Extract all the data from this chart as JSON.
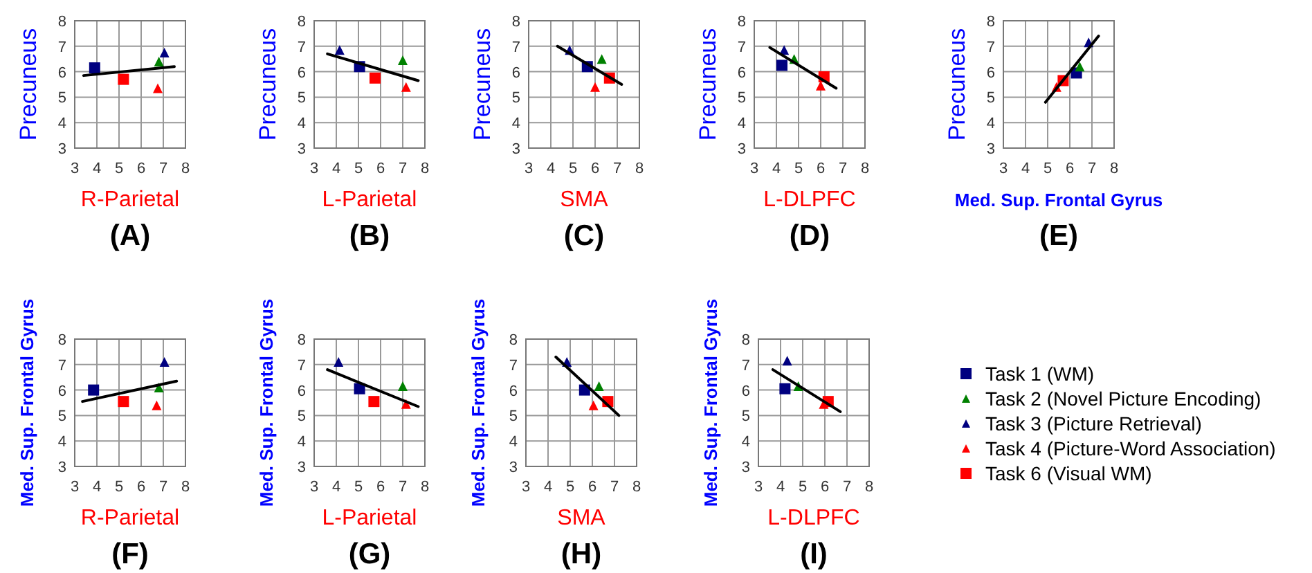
{
  "chart_data": [
    {
      "type": "scatter",
      "title": "(A)",
      "xlabel": "R-Parietal",
      "ylabel": "Precuneus",
      "xlim": [
        3,
        8
      ],
      "ylim": [
        3,
        8
      ],
      "xticks": [
        3,
        4,
        5,
        6,
        7,
        8
      ],
      "yticks": [
        3,
        4,
        5,
        6,
        7,
        8
      ],
      "grid": true,
      "series": [
        {
          "color": "#000080",
          "marker": "square",
          "x": [
            3.9
          ],
          "values": [
            6.15
          ]
        },
        {
          "color": "#008000",
          "marker": "triangle",
          "x": [
            6.8
          ],
          "values": [
            6.4
          ]
        },
        {
          "color": "#000080",
          "marker": "triangle",
          "x": [
            7.05
          ],
          "values": [
            6.75
          ]
        },
        {
          "color": "#ff0000",
          "marker": "triangle",
          "x": [
            6.75
          ],
          "values": [
            5.35
          ]
        },
        {
          "color": "#ff0000",
          "marker": "square",
          "x": [
            5.2
          ],
          "values": [
            5.7
          ]
        },
        {
          "type": "line",
          "color": "#000000",
          "x": [
            3.4,
            7.5
          ],
          "values": [
            5.85,
            6.2
          ]
        }
      ]
    },
    {
      "type": "scatter",
      "title": "(B)",
      "xlabel": "L-Parietal",
      "ylabel": "Precuneus",
      "xlim": [
        3,
        8
      ],
      "ylim": [
        3,
        8
      ],
      "xticks": [
        3,
        4,
        5,
        6,
        7,
        8
      ],
      "yticks": [
        3,
        4,
        5,
        6,
        7,
        8
      ],
      "grid": true,
      "series": [
        {
          "color": "#000080",
          "marker": "square",
          "x": [
            5.05
          ],
          "values": [
            6.2
          ]
        },
        {
          "color": "#008000",
          "marker": "triangle",
          "x": [
            7.0
          ],
          "values": [
            6.45
          ]
        },
        {
          "color": "#000080",
          "marker": "triangle",
          "x": [
            4.15
          ],
          "values": [
            6.85
          ]
        },
        {
          "color": "#ff0000",
          "marker": "triangle",
          "x": [
            7.15
          ],
          "values": [
            5.4
          ]
        },
        {
          "color": "#ff0000",
          "marker": "square",
          "x": [
            5.75
          ],
          "values": [
            5.75
          ]
        },
        {
          "type": "line",
          "color": "#000000",
          "x": [
            3.6,
            7.7
          ],
          "values": [
            6.7,
            5.65
          ]
        }
      ]
    },
    {
      "type": "scatter",
      "title": "(C)",
      "xlabel": "SMA",
      "ylabel": "Precuneus",
      "xlim": [
        3,
        8
      ],
      "ylim": [
        3,
        8
      ],
      "xticks": [
        3,
        4,
        5,
        6,
        7,
        8
      ],
      "yticks": [
        3,
        4,
        5,
        6,
        7,
        8
      ],
      "grid": true,
      "series": [
        {
          "color": "#000080",
          "marker": "square",
          "x": [
            5.65
          ],
          "values": [
            6.2
          ]
        },
        {
          "color": "#008000",
          "marker": "triangle",
          "x": [
            6.3
          ],
          "values": [
            6.5
          ]
        },
        {
          "color": "#000080",
          "marker": "triangle",
          "x": [
            4.85
          ],
          "values": [
            6.85
          ]
        },
        {
          "color": "#ff0000",
          "marker": "triangle",
          "x": [
            6.0
          ],
          "values": [
            5.4
          ]
        },
        {
          "color": "#ff0000",
          "marker": "square",
          "x": [
            6.65
          ],
          "values": [
            5.75
          ]
        },
        {
          "type": "line",
          "color": "#000000",
          "x": [
            4.3,
            7.2
          ],
          "values": [
            7.0,
            5.5
          ]
        }
      ]
    },
    {
      "type": "scatter",
      "title": "(D)",
      "xlabel": "L-DLPFC",
      "ylabel": "Precuneus",
      "xlim": [
        3,
        8
      ],
      "ylim": [
        3,
        8
      ],
      "xticks": [
        3,
        4,
        5,
        6,
        7,
        8
      ],
      "yticks": [
        3,
        4,
        5,
        6,
        7,
        8
      ],
      "grid": true,
      "series": [
        {
          "color": "#000080",
          "marker": "square",
          "x": [
            4.25
          ],
          "values": [
            6.25
          ]
        },
        {
          "color": "#008000",
          "marker": "triangle",
          "x": [
            4.8
          ],
          "values": [
            6.5
          ]
        },
        {
          "color": "#000080",
          "marker": "triangle",
          "x": [
            4.35
          ],
          "values": [
            6.85
          ]
        },
        {
          "color": "#ff0000",
          "marker": "triangle",
          "x": [
            6.0
          ],
          "values": [
            5.45
          ]
        },
        {
          "color": "#ff0000",
          "marker": "square",
          "x": [
            6.15
          ],
          "values": [
            5.8
          ]
        },
        {
          "type": "line",
          "color": "#000000",
          "x": [
            3.7,
            6.7
          ],
          "values": [
            6.95,
            5.35
          ]
        }
      ]
    },
    {
      "type": "scatter",
      "title": "(E)",
      "xlabel": "Med. Sup. Frontal Gyrus",
      "ylabel": "Precuneus",
      "xlim": [
        3,
        8
      ],
      "ylim": [
        3,
        8
      ],
      "xticks": [
        3,
        4,
        5,
        6,
        7,
        8
      ],
      "yticks": [
        3,
        4,
        5,
        6,
        7,
        8
      ],
      "grid": true,
      "series": [
        {
          "color": "#000080",
          "marker": "square",
          "x": [
            6.3
          ],
          "values": [
            5.95
          ]
        },
        {
          "color": "#008000",
          "marker": "triangle",
          "x": [
            6.45
          ],
          "values": [
            6.2
          ]
        },
        {
          "color": "#000080",
          "marker": "triangle",
          "x": [
            6.85
          ],
          "values": [
            7.15
          ]
        },
        {
          "color": "#ff0000",
          "marker": "triangle",
          "x": [
            5.4
          ],
          "values": [
            5.4
          ]
        },
        {
          "color": "#ff0000",
          "marker": "square",
          "x": [
            5.7
          ],
          "values": [
            5.65
          ]
        },
        {
          "type": "line",
          "color": "#000000",
          "x": [
            4.9,
            7.3
          ],
          "values": [
            4.8,
            7.4
          ]
        }
      ]
    },
    {
      "type": "scatter",
      "title": "(F)",
      "xlabel": "R-Parietal",
      "ylabel": "Med. Sup. Frontal Gyrus",
      "xlim": [
        3,
        8
      ],
      "ylim": [
        3,
        8
      ],
      "xticks": [
        3,
        4,
        5,
        6,
        7,
        8
      ],
      "yticks": [
        3,
        4,
        5,
        6,
        7,
        8
      ],
      "grid": true,
      "series": [
        {
          "color": "#000080",
          "marker": "square",
          "x": [
            3.85
          ],
          "values": [
            6.0
          ]
        },
        {
          "color": "#008000",
          "marker": "triangle",
          "x": [
            6.8
          ],
          "values": [
            6.1
          ]
        },
        {
          "color": "#000080",
          "marker": "triangle",
          "x": [
            7.05
          ],
          "values": [
            7.1
          ]
        },
        {
          "color": "#ff0000",
          "marker": "triangle",
          "x": [
            6.7
          ],
          "values": [
            5.4
          ]
        },
        {
          "color": "#ff0000",
          "marker": "square",
          "x": [
            5.2
          ],
          "values": [
            5.55
          ]
        },
        {
          "type": "line",
          "color": "#000000",
          "x": [
            3.35,
            7.6
          ],
          "values": [
            5.55,
            6.35
          ]
        }
      ]
    },
    {
      "type": "scatter",
      "title": "(G)",
      "xlabel": "L-Parietal",
      "ylabel": "Med. Sup. Frontal Gyrus",
      "xlim": [
        3,
        8
      ],
      "ylim": [
        3,
        8
      ],
      "xticks": [
        3,
        4,
        5,
        6,
        7,
        8
      ],
      "yticks": [
        3,
        4,
        5,
        6,
        7,
        8
      ],
      "grid": true,
      "series": [
        {
          "color": "#000080",
          "marker": "square",
          "x": [
            5.05
          ],
          "values": [
            6.05
          ]
        },
        {
          "color": "#008000",
          "marker": "triangle",
          "x": [
            7.0
          ],
          "values": [
            6.15
          ]
        },
        {
          "color": "#000080",
          "marker": "triangle",
          "x": [
            4.1
          ],
          "values": [
            7.1
          ]
        },
        {
          "color": "#ff0000",
          "marker": "triangle",
          "x": [
            7.15
          ],
          "values": [
            5.45
          ]
        },
        {
          "color": "#ff0000",
          "marker": "square",
          "x": [
            5.7
          ],
          "values": [
            5.55
          ]
        },
        {
          "type": "line",
          "color": "#000000",
          "x": [
            3.6,
            7.7
          ],
          "values": [
            6.8,
            5.35
          ]
        }
      ]
    },
    {
      "type": "scatter",
      "title": "(H)",
      "xlabel": "SMA",
      "ylabel": "Med. Sup. Frontal Gyrus",
      "xlim": [
        3,
        8
      ],
      "ylim": [
        3,
        8
      ],
      "xticks": [
        3,
        4,
        5,
        6,
        7,
        8
      ],
      "yticks": [
        3,
        4,
        5,
        6,
        7,
        8
      ],
      "grid": true,
      "series": [
        {
          "color": "#000080",
          "marker": "square",
          "x": [
            5.65
          ],
          "values": [
            6.0
          ]
        },
        {
          "color": "#008000",
          "marker": "triangle",
          "x": [
            6.3
          ],
          "values": [
            6.15
          ]
        },
        {
          "color": "#000080",
          "marker": "triangle",
          "x": [
            4.85
          ],
          "values": [
            7.1
          ]
        },
        {
          "color": "#ff0000",
          "marker": "triangle",
          "x": [
            6.05
          ],
          "values": [
            5.4
          ]
        },
        {
          "color": "#ff0000",
          "marker": "square",
          "x": [
            6.7
          ],
          "values": [
            5.55
          ]
        },
        {
          "type": "line",
          "color": "#000000",
          "x": [
            4.35,
            7.2
          ],
          "values": [
            7.3,
            5.0
          ]
        }
      ]
    },
    {
      "type": "scatter",
      "title": "(I)",
      "xlabel": "L-DLPFC",
      "ylabel": "Med. Sup. Frontal Gyrus",
      "xlim": [
        3,
        8
      ],
      "ylim": [
        3,
        8
      ],
      "xticks": [
        3,
        4,
        5,
        6,
        7,
        8
      ],
      "yticks": [
        3,
        4,
        5,
        6,
        7,
        8
      ],
      "grid": true,
      "legend": "right",
      "series": [
        {
          "name": "Task 1 (WM)",
          "color": "#000080",
          "marker": "square",
          "x": [
            4.2
          ],
          "values": [
            6.05
          ]
        },
        {
          "name": "Task 2 (Novel Picture Encoding)",
          "color": "#008000",
          "marker": "triangle",
          "x": [
            4.8
          ],
          "values": [
            6.15
          ]
        },
        {
          "name": "Task 3 (Picture Retrieval)",
          "color": "#000080",
          "marker": "triangle",
          "x": [
            4.3
          ],
          "values": [
            7.15
          ]
        },
        {
          "name": "Task 4 (Picture-Word Association)",
          "color": "#ff0000",
          "marker": "triangle",
          "x": [
            5.95
          ],
          "values": [
            5.45
          ]
        },
        {
          "name": "Task 6 (Visual WM)",
          "color": "#ff0000",
          "marker": "square",
          "x": [
            6.15
          ],
          "values": [
            5.55
          ]
        },
        {
          "type": "line",
          "color": "#000000",
          "x": [
            3.65,
            6.7
          ],
          "values": [
            6.8,
            5.15
          ]
        }
      ]
    }
  ]
}
